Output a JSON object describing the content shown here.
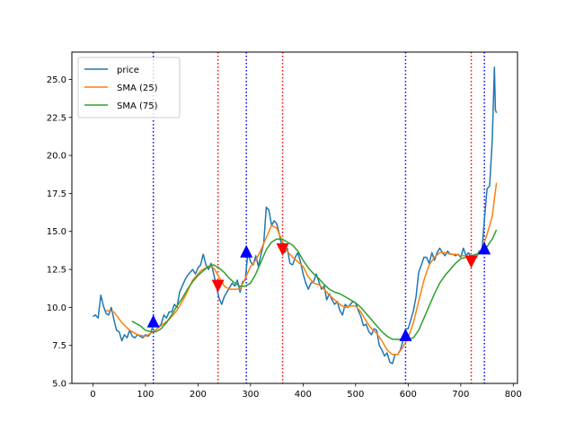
{
  "chart_data": {
    "type": "line",
    "title": "",
    "xlabel": "",
    "ylabel": "",
    "xlim": [
      -40,
      808
    ],
    "ylim": [
      5.0,
      26.8
    ],
    "x_ticks": [
      0,
      100,
      200,
      300,
      400,
      500,
      600,
      700,
      800
    ],
    "x_tick_labels": [
      "0",
      "100",
      "200",
      "300",
      "400",
      "500",
      "600",
      "700",
      "800"
    ],
    "y_ticks": [
      5.0,
      7.5,
      10.0,
      12.5,
      15.0,
      17.5,
      20.0,
      22.5,
      25.0
    ],
    "y_tick_labels": [
      "5.0",
      "7.5",
      "10.0",
      "12.5",
      "15.0",
      "17.5",
      "20.0",
      "22.5",
      "25.0"
    ],
    "grid": false,
    "legend_position": "top-left",
    "colors": {
      "price": "#1f77b4",
      "sma25": "#ff7f0e",
      "sma75": "#2ca02c",
      "buy": "#0000ff",
      "sell": "#ff0000"
    },
    "series": [
      {
        "name": "price",
        "points": [
          [
            0,
            9.4
          ],
          [
            5,
            9.5
          ],
          [
            10,
            9.3
          ],
          [
            15,
            10.8
          ],
          [
            20,
            10.1
          ],
          [
            25,
            9.6
          ],
          [
            30,
            9.5
          ],
          [
            35,
            10.0
          ],
          [
            40,
            9.2
          ],
          [
            45,
            8.5
          ],
          [
            50,
            8.4
          ],
          [
            55,
            7.8
          ],
          [
            60,
            8.2
          ],
          [
            65,
            8.0
          ],
          [
            70,
            8.5
          ],
          [
            75,
            8.1
          ],
          [
            80,
            8.0
          ],
          [
            85,
            8.2
          ],
          [
            90,
            8.1
          ],
          [
            95,
            8.0
          ],
          [
            100,
            8.2
          ],
          [
            105,
            8.1
          ],
          [
            110,
            8.3
          ],
          [
            115,
            8.9
          ],
          [
            120,
            9.0
          ],
          [
            125,
            8.7
          ],
          [
            130,
            8.9
          ],
          [
            135,
            9.5
          ],
          [
            140,
            9.3
          ],
          [
            145,
            9.7
          ],
          [
            150,
            9.7
          ],
          [
            155,
            10.2
          ],
          [
            160,
            10.0
          ],
          [
            165,
            11.0
          ],
          [
            170,
            11.4
          ],
          [
            175,
            11.8
          ],
          [
            180,
            12.1
          ],
          [
            185,
            12.3
          ],
          [
            190,
            12.5
          ],
          [
            195,
            12.2
          ],
          [
            200,
            12.6
          ],
          [
            205,
            12.8
          ],
          [
            210,
            13.5
          ],
          [
            215,
            12.8
          ],
          [
            220,
            12.5
          ],
          [
            225,
            12.9
          ],
          [
            230,
            12.2
          ],
          [
            235,
            11.4
          ],
          [
            240,
            10.6
          ],
          [
            245,
            10.2
          ],
          [
            250,
            10.7
          ],
          [
            255,
            11.0
          ],
          [
            260,
            11.3
          ],
          [
            265,
            11.6
          ],
          [
            270,
            11.4
          ],
          [
            275,
            11.8
          ],
          [
            280,
            11.0
          ],
          [
            285,
            11.7
          ],
          [
            290,
            11.8
          ],
          [
            295,
            13.6
          ],
          [
            300,
            13.0
          ],
          [
            305,
            12.8
          ],
          [
            310,
            13.4
          ],
          [
            315,
            12.7
          ],
          [
            320,
            13.5
          ],
          [
            325,
            14.2
          ],
          [
            330,
            16.6
          ],
          [
            335,
            16.4
          ],
          [
            340,
            15.4
          ],
          [
            345,
            15.7
          ],
          [
            350,
            15.5
          ],
          [
            355,
            14.8
          ],
          [
            360,
            13.9
          ],
          [
            365,
            13.6
          ],
          [
            370,
            13.9
          ],
          [
            375,
            12.9
          ],
          [
            380,
            12.8
          ],
          [
            385,
            13.3
          ],
          [
            390,
            13.6
          ],
          [
            395,
            13.0
          ],
          [
            400,
            12.2
          ],
          [
            405,
            11.6
          ],
          [
            410,
            11.2
          ],
          [
            415,
            11.6
          ],
          [
            420,
            11.7
          ],
          [
            425,
            12.2
          ],
          [
            430,
            11.7
          ],
          [
            435,
            11.2
          ],
          [
            440,
            11.4
          ],
          [
            445,
            10.5
          ],
          [
            450,
            10.9
          ],
          [
            455,
            10.5
          ],
          [
            460,
            10.2
          ],
          [
            465,
            10.4
          ],
          [
            470,
            9.8
          ],
          [
            475,
            9.5
          ],
          [
            480,
            10.2
          ],
          [
            485,
            10.0
          ],
          [
            490,
            10.2
          ],
          [
            495,
            10.4
          ],
          [
            500,
            10.3
          ],
          [
            505,
            9.8
          ],
          [
            510,
            9.4
          ],
          [
            515,
            8.8
          ],
          [
            520,
            8.9
          ],
          [
            525,
            8.4
          ],
          [
            530,
            8.2
          ],
          [
            535,
            8.6
          ],
          [
            540,
            8.5
          ],
          [
            545,
            7.5
          ],
          [
            550,
            7.2
          ],
          [
            555,
            6.8
          ],
          [
            560,
            7.0
          ],
          [
            565,
            6.4
          ],
          [
            570,
            6.3
          ],
          [
            575,
            6.9
          ],
          [
            580,
            6.9
          ],
          [
            585,
            7.2
          ],
          [
            590,
            7.8
          ],
          [
            595,
            8.6
          ],
          [
            600,
            8.6
          ],
          [
            605,
            9.2
          ],
          [
            610,
            9.8
          ],
          [
            615,
            10.7
          ],
          [
            620,
            12.3
          ],
          [
            625,
            12.8
          ],
          [
            630,
            13.3
          ],
          [
            635,
            13.3
          ],
          [
            640,
            12.9
          ],
          [
            645,
            13.6
          ],
          [
            650,
            13.1
          ],
          [
            655,
            13.6
          ],
          [
            660,
            13.9
          ],
          [
            665,
            13.6
          ],
          [
            670,
            13.4
          ],
          [
            675,
            13.7
          ],
          [
            680,
            13.5
          ],
          [
            685,
            13.5
          ],
          [
            690,
            13.4
          ],
          [
            695,
            13.5
          ],
          [
            700,
            13.3
          ],
          [
            705,
            13.9
          ],
          [
            710,
            13.4
          ],
          [
            715,
            13.6
          ],
          [
            720,
            13.2
          ],
          [
            725,
            13.2
          ],
          [
            730,
            13.3
          ],
          [
            735,
            13.7
          ],
          [
            740,
            13.6
          ],
          [
            745,
            15.8
          ],
          [
            750,
            17.8
          ],
          [
            755,
            18.0
          ],
          [
            760,
            21.0
          ],
          [
            764,
            25.8
          ],
          [
            766,
            23.0
          ],
          [
            768,
            22.8
          ]
        ]
      },
      {
        "name": "SMA (25)",
        "points": [
          [
            24,
            9.8
          ],
          [
            40,
            9.7
          ],
          [
            55,
            9.0
          ],
          [
            70,
            8.5
          ],
          [
            85,
            8.2
          ],
          [
            100,
            8.1
          ],
          [
            115,
            8.4
          ],
          [
            130,
            8.8
          ],
          [
            145,
            9.2
          ],
          [
            160,
            9.8
          ],
          [
            175,
            10.7
          ],
          [
            190,
            11.8
          ],
          [
            205,
            12.4
          ],
          [
            220,
            12.7
          ],
          [
            230,
            12.6
          ],
          [
            240,
            12.0
          ],
          [
            250,
            11.4
          ],
          [
            260,
            11.2
          ],
          [
            270,
            11.2
          ],
          [
            280,
            11.2
          ],
          [
            290,
            11.9
          ],
          [
            300,
            12.7
          ],
          [
            310,
            13.1
          ],
          [
            320,
            13.8
          ],
          [
            330,
            14.6
          ],
          [
            340,
            15.4
          ],
          [
            350,
            15.2
          ],
          [
            360,
            14.4
          ],
          [
            370,
            13.7
          ],
          [
            380,
            13.3
          ],
          [
            390,
            13.0
          ],
          [
            400,
            12.7
          ],
          [
            410,
            12.0
          ],
          [
            420,
            11.6
          ],
          [
            430,
            11.5
          ],
          [
            440,
            11.2
          ],
          [
            450,
            10.8
          ],
          [
            460,
            10.5
          ],
          [
            470,
            10.2
          ],
          [
            480,
            10.0
          ],
          [
            490,
            10.1
          ],
          [
            500,
            10.1
          ],
          [
            510,
            9.7
          ],
          [
            520,
            9.1
          ],
          [
            530,
            8.6
          ],
          [
            540,
            8.3
          ],
          [
            550,
            7.8
          ],
          [
            560,
            7.2
          ],
          [
            570,
            6.9
          ],
          [
            580,
            6.9
          ],
          [
            590,
            7.4
          ],
          [
            600,
            8.0
          ],
          [
            610,
            9.0
          ],
          [
            620,
            10.4
          ],
          [
            630,
            11.8
          ],
          [
            640,
            12.8
          ],
          [
            650,
            13.3
          ],
          [
            660,
            13.6
          ],
          [
            670,
            13.6
          ],
          [
            680,
            13.5
          ],
          [
            690,
            13.5
          ],
          [
            700,
            13.4
          ],
          [
            710,
            13.4
          ],
          [
            720,
            13.3
          ],
          [
            730,
            13.4
          ],
          [
            740,
            13.8
          ],
          [
            750,
            14.8
          ],
          [
            760,
            16.0
          ],
          [
            768,
            18.2
          ]
        ]
      },
      {
        "name": "SMA (75)",
        "points": [
          [
            74,
            9.1
          ],
          [
            90,
            8.8
          ],
          [
            100,
            8.5
          ],
          [
            110,
            8.4
          ],
          [
            120,
            8.4
          ],
          [
            130,
            8.6
          ],
          [
            140,
            9.0
          ],
          [
            150,
            9.5
          ],
          [
            160,
            10.1
          ],
          [
            170,
            10.6
          ],
          [
            180,
            11.2
          ],
          [
            190,
            11.7
          ],
          [
            200,
            12.1
          ],
          [
            210,
            12.4
          ],
          [
            220,
            12.7
          ],
          [
            230,
            12.8
          ],
          [
            240,
            12.6
          ],
          [
            250,
            12.3
          ],
          [
            260,
            11.9
          ],
          [
            270,
            11.6
          ],
          [
            280,
            11.4
          ],
          [
            290,
            11.4
          ],
          [
            300,
            11.6
          ],
          [
            310,
            12.2
          ],
          [
            320,
            13.0
          ],
          [
            330,
            13.8
          ],
          [
            340,
            14.3
          ],
          [
            350,
            14.5
          ],
          [
            360,
            14.5
          ],
          [
            370,
            14.3
          ],
          [
            380,
            14.1
          ],
          [
            390,
            13.7
          ],
          [
            400,
            13.1
          ],
          [
            410,
            12.6
          ],
          [
            420,
            12.2
          ],
          [
            430,
            11.9
          ],
          [
            440,
            11.5
          ],
          [
            450,
            11.2
          ],
          [
            460,
            11.0
          ],
          [
            470,
            10.9
          ],
          [
            480,
            10.7
          ],
          [
            490,
            10.5
          ],
          [
            500,
            10.3
          ],
          [
            510,
            10.0
          ],
          [
            520,
            9.6
          ],
          [
            530,
            9.2
          ],
          [
            540,
            8.8
          ],
          [
            550,
            8.4
          ],
          [
            560,
            8.1
          ],
          [
            570,
            7.9
          ],
          [
            580,
            7.9
          ],
          [
            590,
            7.9
          ],
          [
            600,
            7.9
          ],
          [
            610,
            8.0
          ],
          [
            620,
            8.5
          ],
          [
            630,
            9.3
          ],
          [
            640,
            10.1
          ],
          [
            650,
            10.9
          ],
          [
            660,
            11.6
          ],
          [
            670,
            12.1
          ],
          [
            680,
            12.5
          ],
          [
            690,
            12.9
          ],
          [
            700,
            13.2
          ],
          [
            710,
            13.3
          ],
          [
            720,
            13.4
          ],
          [
            730,
            13.5
          ],
          [
            740,
            13.7
          ],
          [
            750,
            14.0
          ],
          [
            760,
            14.5
          ],
          [
            768,
            15.1
          ]
        ]
      }
    ],
    "buy_signals": [
      [
        115,
        9.1
      ],
      [
        292,
        13.7
      ],
      [
        595,
        8.2
      ],
      [
        745,
        13.9
      ]
    ],
    "sell_signals": [
      [
        238,
        11.4
      ],
      [
        361,
        13.8
      ],
      [
        720,
        13.0
      ]
    ]
  }
}
